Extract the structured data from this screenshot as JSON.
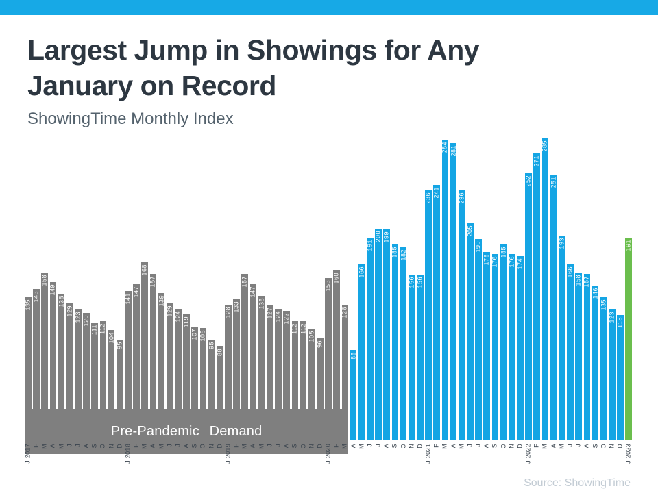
{
  "page": {
    "accent_color": "#17A9E6",
    "title_line1": "Largest Jump in Showings for Any",
    "title_line2": "January on Record",
    "subtitle": "ShowingTime Monthly Index",
    "source": "Source: ShowingTime"
  },
  "chart_data": {
    "type": "bar",
    "title": "Largest Jump in Showings for Any January on Record",
    "subtitle": "ShowingTime Monthly Index",
    "ylabel": "ShowingTime Monthly Index",
    "xlabel": "",
    "ylim": [
      0,
      285
    ],
    "grid": false,
    "legend": "none",
    "annotation": "Pre-Pandemic Demand",
    "colors": {
      "pre_pandemic": "#7F7F7F",
      "pandemic": "#14A5E4",
      "latest": "#6BBE4D",
      "value_label": "#FFFFFF",
      "axis_label": "#3A444E"
    },
    "bars": [
      {
        "label": "J 2017",
        "value": 135,
        "group": "pre_pandemic"
      },
      {
        "label": "F",
        "value": 143,
        "group": "pre_pandemic"
      },
      {
        "label": "M",
        "value": 158,
        "group": "pre_pandemic"
      },
      {
        "label": "A",
        "value": 149,
        "group": "pre_pandemic"
      },
      {
        "label": "M",
        "value": 138,
        "group": "pre_pandemic"
      },
      {
        "label": "J",
        "value": 129,
        "group": "pre_pandemic"
      },
      {
        "label": "J",
        "value": 123,
        "group": "pre_pandemic"
      },
      {
        "label": "A",
        "value": 120,
        "group": "pre_pandemic"
      },
      {
        "label": "S",
        "value": 111,
        "group": "pre_pandemic"
      },
      {
        "label": "O",
        "value": 112,
        "group": "pre_pandemic"
      },
      {
        "label": "N",
        "value": 104,
        "group": "pre_pandemic"
      },
      {
        "label": "D",
        "value": 95,
        "group": "pre_pandemic"
      },
      {
        "label": "J 2018",
        "value": 141,
        "group": "pre_pandemic"
      },
      {
        "label": "F",
        "value": 147,
        "group": "pre_pandemic"
      },
      {
        "label": "M",
        "value": 168,
        "group": "pre_pandemic"
      },
      {
        "label": "A",
        "value": 157,
        "group": "pre_pandemic"
      },
      {
        "label": "M",
        "value": 139,
        "group": "pre_pandemic"
      },
      {
        "label": "J",
        "value": 129,
        "group": "pre_pandemic"
      },
      {
        "label": "J",
        "value": 124,
        "group": "pre_pandemic"
      },
      {
        "label": "A",
        "value": 119,
        "group": "pre_pandemic"
      },
      {
        "label": "S",
        "value": 107,
        "group": "pre_pandemic"
      },
      {
        "label": "O",
        "value": 106,
        "group": "pre_pandemic"
      },
      {
        "label": "N",
        "value": 95,
        "group": "pre_pandemic"
      },
      {
        "label": "D",
        "value": 88,
        "group": "pre_pandemic"
      },
      {
        "label": "J 2019",
        "value": 128,
        "group": "pre_pandemic"
      },
      {
        "label": "F",
        "value": 133,
        "group": "pre_pandemic"
      },
      {
        "label": "M",
        "value": 157,
        "group": "pre_pandemic"
      },
      {
        "label": "A",
        "value": 147,
        "group": "pre_pandemic"
      },
      {
        "label": "M",
        "value": 136,
        "group": "pre_pandemic"
      },
      {
        "label": "J",
        "value": 127,
        "group": "pre_pandemic"
      },
      {
        "label": "J",
        "value": 124,
        "group": "pre_pandemic"
      },
      {
        "label": "A",
        "value": 122,
        "group": "pre_pandemic"
      },
      {
        "label": "S",
        "value": 112,
        "group": "pre_pandemic"
      },
      {
        "label": "O",
        "value": 112,
        "group": "pre_pandemic"
      },
      {
        "label": "N",
        "value": 105,
        "group": "pre_pandemic"
      },
      {
        "label": "D",
        "value": 96,
        "group": "pre_pandemic"
      },
      {
        "label": "J 2020",
        "value": 153,
        "group": "pre_pandemic"
      },
      {
        "label": "F",
        "value": 160,
        "group": "pre_pandemic"
      },
      {
        "label": "M",
        "value": 128,
        "group": "pre_pandemic"
      },
      {
        "label": "A",
        "value": 85,
        "group": "pandemic"
      },
      {
        "label": "M",
        "value": 166,
        "group": "pandemic"
      },
      {
        "label": "J",
        "value": 191,
        "group": "pandemic"
      },
      {
        "label": "J",
        "value": 200,
        "group": "pandemic"
      },
      {
        "label": "A",
        "value": 199,
        "group": "pandemic"
      },
      {
        "label": "S",
        "value": 185,
        "group": "pandemic"
      },
      {
        "label": "O",
        "value": 182,
        "group": "pandemic"
      },
      {
        "label": "N",
        "value": 156,
        "group": "pandemic"
      },
      {
        "label": "D",
        "value": 156,
        "group": "pandemic"
      },
      {
        "label": "J 2021",
        "value": 236,
        "group": "pandemic"
      },
      {
        "label": "F",
        "value": 241,
        "group": "pandemic"
      },
      {
        "label": "M",
        "value": 284,
        "group": "pandemic"
      },
      {
        "label": "A",
        "value": 281,
        "group": "pandemic"
      },
      {
        "label": "M",
        "value": 236,
        "group": "pandemic"
      },
      {
        "label": "J",
        "value": 205,
        "group": "pandemic"
      },
      {
        "label": "J",
        "value": 190,
        "group": "pandemic"
      },
      {
        "label": "A",
        "value": 178,
        "group": "pandemic"
      },
      {
        "label": "S",
        "value": 176,
        "group": "pandemic"
      },
      {
        "label": "O",
        "value": 185,
        "group": "pandemic"
      },
      {
        "label": "N",
        "value": 176,
        "group": "pandemic"
      },
      {
        "label": "D",
        "value": 174,
        "group": "pandemic"
      },
      {
        "label": "J 2022",
        "value": 252,
        "group": "pandemic"
      },
      {
        "label": "F",
        "value": 271,
        "group": "pandemic"
      },
      {
        "label": "M",
        "value": 285,
        "group": "pandemic"
      },
      {
        "label": "A",
        "value": 251,
        "group": "pandemic"
      },
      {
        "label": "M",
        "value": 193,
        "group": "pandemic"
      },
      {
        "label": "J",
        "value": 166,
        "group": "pandemic"
      },
      {
        "label": "J",
        "value": 158,
        "group": "pandemic"
      },
      {
        "label": "A",
        "value": 157,
        "group": "pandemic"
      },
      {
        "label": "S",
        "value": 146,
        "group": "pandemic"
      },
      {
        "label": "O",
        "value": 135,
        "group": "pandemic"
      },
      {
        "label": "N",
        "value": 123,
        "group": "pandemic"
      },
      {
        "label": "D",
        "value": 118,
        "group": "pandemic"
      },
      {
        "label": "J 2023",
        "value": 191,
        "group": "latest"
      }
    ]
  }
}
